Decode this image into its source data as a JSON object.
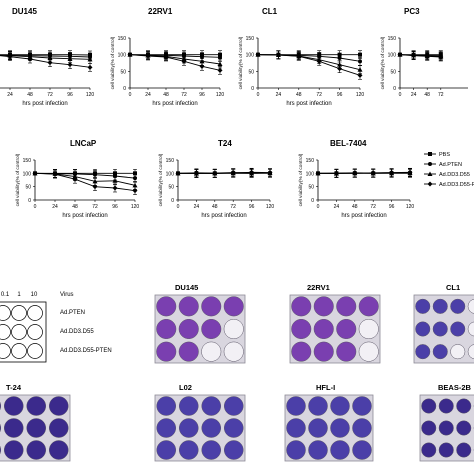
{
  "chart_data": [
    {
      "type": "line",
      "title": "DU145",
      "ylabel": "",
      "xlabel": "hrs post infection",
      "x": [
        0,
        24,
        48,
        72,
        96,
        120
      ],
      "ylim": [
        0,
        150
      ],
      "series": [
        {
          "name": "PBS",
          "values": [
            100,
            100,
            100,
            100,
            100,
            99
          ]
        },
        {
          "name": "Ad.PTEN",
          "values": [
            100,
            98,
            97,
            96,
            95,
            93
          ]
        },
        {
          "name": "Ad.DD3.D55",
          "values": [
            100,
            97,
            94,
            90,
            88,
            86
          ]
        },
        {
          "name": "Ad.DD3.D55-PTEN",
          "values": [
            100,
            94,
            87,
            76,
            70,
            62
          ]
        }
      ]
    },
    {
      "type": "line",
      "title": "22RV1",
      "ylabel": "cell viability(% of control)",
      "xlabel": "hrs post infection",
      "x": [
        0,
        24,
        48,
        72,
        96,
        120
      ],
      "ylim": [
        0,
        150
      ],
      "series": [
        {
          "name": "PBS",
          "values": [
            100,
            100,
            100,
            100,
            100,
            100
          ]
        },
        {
          "name": "Ad.PTEN",
          "values": [
            100,
            99,
            98,
            96,
            94,
            92
          ]
        },
        {
          "name": "Ad.DD3.D55",
          "values": [
            100,
            97,
            95,
            87,
            80,
            72
          ]
        },
        {
          "name": "Ad.DD3.D55-PTEN",
          "values": [
            100,
            96,
            93,
            80,
            65,
            53
          ]
        }
      ]
    },
    {
      "type": "line",
      "title": "CL1",
      "ylabel": "cell viability(% of control)",
      "xlabel": "hrs post infection",
      "x": [
        0,
        24,
        48,
        72,
        96,
        120
      ],
      "ylim": [
        0,
        150
      ],
      "series": [
        {
          "name": "PBS",
          "values": [
            100,
            100,
            100,
            100,
            100,
            100
          ]
        },
        {
          "name": "Ad.PTEN",
          "values": [
            100,
            100,
            98,
            95,
            90,
            80
          ]
        },
        {
          "name": "Ad.DD3.D55",
          "values": [
            100,
            99,
            96,
            85,
            70,
            55
          ]
        },
        {
          "name": "Ad.DD3.D55-PTEN",
          "values": [
            100,
            99,
            95,
            80,
            58,
            38
          ]
        }
      ]
    },
    {
      "type": "line",
      "title": "PC3",
      "ylabel": "cell viability(% of control)",
      "xlabel": "",
      "x": [
        0,
        24,
        48,
        72
      ],
      "ylim": [
        0,
        150
      ],
      "series": [
        {
          "name": "PBS",
          "values": [
            100,
            100,
            100,
            100
          ]
        },
        {
          "name": "Ad.PTEN",
          "values": [
            100,
            99,
            98,
            98
          ]
        },
        {
          "name": "Ad.DD3.D55",
          "values": [
            100,
            98,
            96,
            95
          ]
        },
        {
          "name": "Ad.DD3.D55-PTEN",
          "values": [
            100,
            97,
            95,
            93
          ]
        }
      ]
    },
    {
      "type": "line",
      "title": "LNCaP",
      "ylabel": "cell viability(% of control)",
      "xlabel": "hrs post infection",
      "x": [
        0,
        24,
        48,
        72,
        96,
        120
      ],
      "ylim": [
        0,
        150
      ],
      "series": [
        {
          "name": "PBS",
          "values": [
            100,
            100,
            100,
            100,
            100,
            100
          ]
        },
        {
          "name": "Ad.PTEN",
          "values": [
            100,
            99,
            98,
            95,
            90,
            82
          ]
        },
        {
          "name": "Ad.DD3.D55",
          "values": [
            100,
            98,
            88,
            70,
            72,
            55
          ]
        },
        {
          "name": "Ad.DD3.D55-PTEN",
          "values": [
            100,
            97,
            78,
            50,
            45,
            35
          ]
        }
      ]
    },
    {
      "type": "line",
      "title": "T24",
      "ylabel": "cell viability(% of control)",
      "xlabel": "hrs post infection",
      "x": [
        0,
        24,
        48,
        72,
        96,
        120
      ],
      "ylim": [
        0,
        150
      ],
      "series": [
        {
          "name": "PBS",
          "values": [
            100,
            100,
            100,
            100,
            100,
            100
          ]
        },
        {
          "name": "Ad.PTEN",
          "values": [
            100,
            102,
            101,
            103,
            102,
            101
          ]
        },
        {
          "name": "Ad.DD3.D55",
          "values": [
            100,
            99,
            100,
            101,
            100,
            102
          ]
        },
        {
          "name": "Ad.DD3.D55-PTEN",
          "values": [
            100,
            100,
            99,
            102,
            104,
            103
          ]
        }
      ]
    },
    {
      "type": "line",
      "title": "BEL-7404",
      "ylabel": "cell viability(% of control)",
      "xlabel": "hrs post infection",
      "x": [
        0,
        24,
        48,
        72,
        96,
        120
      ],
      "ylim": [
        0,
        150
      ],
      "series": [
        {
          "name": "PBS",
          "values": [
            100,
            100,
            100,
            100,
            100,
            100
          ]
        },
        {
          "name": "Ad.PTEN",
          "values": [
            100,
            101,
            102,
            101,
            102,
            103
          ]
        },
        {
          "name": "Ad.DD3.D55",
          "values": [
            100,
            99,
            101,
            100,
            101,
            102
          ]
        },
        {
          "name": "Ad.DD3.D55-PTEN",
          "values": [
            100,
            100,
            100,
            102,
            103,
            104
          ]
        }
      ]
    }
  ],
  "axis": {
    "yticks": [
      0,
      50,
      100,
      150
    ],
    "xticks": [
      0,
      24,
      48,
      72,
      96,
      120
    ]
  },
  "legend": {
    "items": [
      "PBS",
      "Ad.PTEN",
      "Ad.DD3.D55",
      "Ad.DD3.D55-PTEN"
    ]
  },
  "colors": {
    "line": "#000000",
    "stain_dark": "#3b2a8c",
    "stain_violet": "#7a3fb0",
    "stain_blue": "#4b3fa8",
    "well_clear": "#f2f0f5"
  },
  "plate_key": {
    "moi_labels": [
      "0.1",
      "1",
      "10"
    ],
    "virus_header": "Virus",
    "rows": [
      "Ad.PTEN",
      "Ad.DD3.D55",
      "Ad.DD3.D55-PTEN"
    ]
  },
  "plates": [
    {
      "label": "DU145",
      "rows": [
        [
          "violet",
          "violet",
          "violet",
          "violet"
        ],
        [
          "violet",
          "violet",
          "violet",
          "clear"
        ],
        [
          "violet",
          "violet",
          "clear",
          "clear"
        ]
      ]
    },
    {
      "label": "22RV1",
      "rows": [
        [
          "violet",
          "violet",
          "violet",
          "violet"
        ],
        [
          "violet",
          "violet",
          "violet",
          "clear"
        ],
        [
          "violet",
          "violet",
          "violet",
          "clear"
        ]
      ]
    },
    {
      "label": "CL1",
      "rows": [
        [
          "blue",
          "blue",
          "blue",
          "clear"
        ],
        [
          "blue",
          "blue",
          "blue",
          "clear"
        ],
        [
          "blue",
          "blue",
          "clear",
          "clear"
        ]
      ]
    },
    {
      "label": "T-24",
      "rows": [
        [
          "dark",
          "dark",
          "dark",
          "dark"
        ],
        [
          "dark",
          "dark",
          "dark",
          "dark"
        ],
        [
          "dark",
          "dark",
          "dark",
          "dark"
        ]
      ]
    },
    {
      "label": "L02",
      "rows": [
        [
          "blue",
          "blue",
          "blue",
          "blue"
        ],
        [
          "blue",
          "blue",
          "blue",
          "blue"
        ],
        [
          "blue",
          "blue",
          "blue",
          "blue"
        ]
      ]
    },
    {
      "label": "HFL-I",
      "rows": [
        [
          "blue",
          "blue",
          "blue",
          "blue"
        ],
        [
          "blue",
          "blue",
          "blue",
          "blue"
        ],
        [
          "blue",
          "blue",
          "blue",
          "blue"
        ]
      ]
    },
    {
      "label": "BEAS-2B",
      "rows": [
        [
          "dark",
          "dark",
          "dark",
          "dark"
        ],
        [
          "dark",
          "dark",
          "dark",
          "dark"
        ],
        [
          "dark",
          "dark",
          "dark",
          "dark"
        ]
      ]
    }
  ]
}
